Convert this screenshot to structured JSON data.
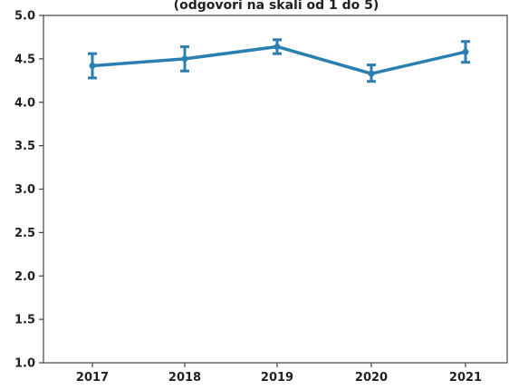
{
  "chart_data": {
    "type": "line",
    "title": "(odgovori na skali od 1 do 5)",
    "xlabel": "",
    "ylabel": "",
    "categories": [
      "2017",
      "2018",
      "2019",
      "2020",
      "2021"
    ],
    "series": [
      {
        "values": [
          4.42,
          4.5,
          4.64,
          4.33,
          4.58
        ],
        "error_low": [
          4.28,
          4.36,
          4.56,
          4.24,
          4.46
        ],
        "error_high": [
          4.56,
          4.64,
          4.72,
          4.43,
          4.7
        ]
      }
    ],
    "ylim": [
      1.0,
      5.0
    ],
    "yticks": [
      "1.0",
      "1.5",
      "2.0",
      "2.5",
      "3.0",
      "3.5",
      "4.0",
      "4.5",
      "5.0"
    ],
    "grid": false,
    "line_color": "#2a7fb0"
  }
}
